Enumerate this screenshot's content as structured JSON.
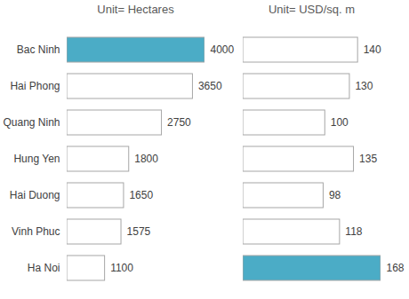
{
  "chart_data": [
    {
      "type": "bar",
      "title": "Unit= Hectares",
      "orientation": "horizontal",
      "categories": [
        "Bac Ninh",
        "Hai Phong",
        "Quang Ninh",
        "Hung Yen",
        "Hai Duong",
        "Vinh Phuc",
        "Ha Noi"
      ],
      "values": [
        4000,
        3650,
        2750,
        1800,
        1650,
        1575,
        1100
      ],
      "colors": [
        "#4bacc6",
        "#ffffff",
        "#ffffff",
        "#ffffff",
        "#ffffff",
        "#ffffff",
        "#ffffff"
      ],
      "xlim": [
        0,
        4000
      ],
      "data_labels": true,
      "tick_labels": "y",
      "grid": false
    },
    {
      "type": "bar",
      "title": "Unit= USD/sq. m",
      "orientation": "horizontal",
      "categories": [
        "Bac Ninh",
        "Hai Phong",
        "Quang Ninh",
        "Hung Yen",
        "Hai Duong",
        "Vinh Phuc",
        "Ha Noi"
      ],
      "values": [
        140,
        130,
        100,
        135,
        98,
        118,
        168
      ],
      "colors": [
        "#ffffff",
        "#ffffff",
        "#ffffff",
        "#ffffff",
        "#ffffff",
        "#ffffff",
        "#4bacc6"
      ],
      "xlim": [
        0,
        168
      ],
      "data_labels": true,
      "tick_labels": false,
      "grid": false
    }
  ]
}
